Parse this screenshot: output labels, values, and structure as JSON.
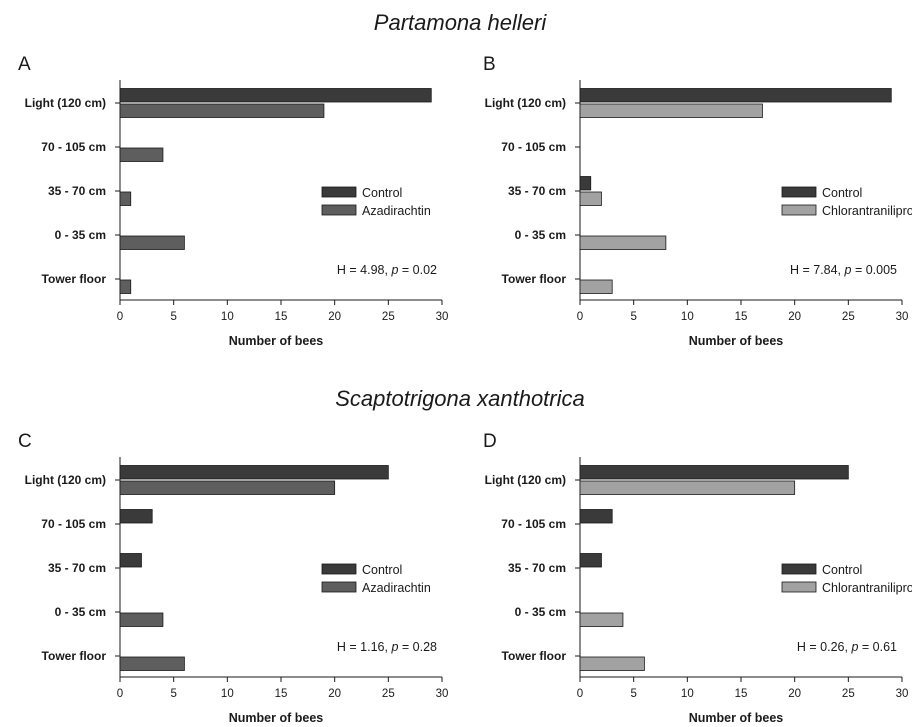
{
  "titles": {
    "top": "Partamona helleri",
    "bottom": "Scaptotrigona xanthotrica"
  },
  "chart_data": [
    {
      "panel": "A",
      "type": "bar",
      "orientation": "horizontal",
      "categories": [
        "Light (120 cm)",
        "70 - 105 cm",
        "35 - 70 cm",
        "0 - 35 cm",
        "Tower floor"
      ],
      "series": [
        {
          "name": "Control",
          "values": [
            29,
            0,
            0,
            0,
            0
          ],
          "color": "#3a3a3a"
        },
        {
          "name": "Azadirachtin",
          "values": [
            19,
            4,
            1,
            6,
            1
          ],
          "color": "#5e5e5e"
        }
      ],
      "xlabel": "Number of bees",
      "xlim": [
        0,
        30
      ],
      "xticks": [
        0,
        5,
        10,
        15,
        20,
        25,
        30
      ],
      "stat": {
        "h": "H = 4.98,",
        "p_symbol": "p",
        "p_value": "= 0.02"
      },
      "legend_position": "right"
    },
    {
      "panel": "B",
      "type": "bar",
      "orientation": "horizontal",
      "categories": [
        "Light (120 cm)",
        "70 - 105 cm",
        "35 - 70 cm",
        "0 - 35 cm",
        "Tower floor"
      ],
      "series": [
        {
          "name": "Control",
          "values": [
            29,
            0,
            1,
            0,
            0
          ],
          "color": "#3a3a3a"
        },
        {
          "name": "Chlorantraniliprole",
          "values": [
            17,
            0,
            2,
            8,
            3
          ],
          "color": "#a2a2a2"
        }
      ],
      "xlabel": "Number of bees",
      "xlim": [
        0,
        30
      ],
      "xticks": [
        0,
        5,
        10,
        15,
        20,
        25,
        30
      ],
      "stat": {
        "h": "H = 7.84,",
        "p_symbol": "p",
        "p_value": "= 0.005"
      },
      "legend_position": "right"
    },
    {
      "panel": "C",
      "type": "bar",
      "orientation": "horizontal",
      "categories": [
        "Light (120 cm)",
        "70 - 105 cm",
        "35 - 70 cm",
        "0 - 35 cm",
        "Tower floor"
      ],
      "series": [
        {
          "name": "Control",
          "values": [
            25,
            3,
            2,
            0,
            0
          ],
          "color": "#3a3a3a"
        },
        {
          "name": "Azadirachtin",
          "values": [
            20,
            0,
            0,
            4,
            6
          ],
          "color": "#5e5e5e"
        }
      ],
      "xlabel": "Number of bees",
      "xlim": [
        0,
        30
      ],
      "xticks": [
        0,
        5,
        10,
        15,
        20,
        25,
        30
      ],
      "stat": {
        "h": "H = 1.16,",
        "p_symbol": "p",
        "p_value": "= 0.28"
      },
      "legend_position": "right"
    },
    {
      "panel": "D",
      "type": "bar",
      "orientation": "horizontal",
      "categories": [
        "Light (120 cm)",
        "70 - 105 cm",
        "35 - 70 cm",
        "0 - 35 cm",
        "Tower floor"
      ],
      "series": [
        {
          "name": "Control",
          "values": [
            25,
            3,
            2,
            0,
            0
          ],
          "color": "#3a3a3a"
        },
        {
          "name": "Chlorantraniliprole",
          "values": [
            20,
            0,
            0,
            4,
            6
          ],
          "color": "#a2a2a2"
        }
      ],
      "xlabel": "Number of bees",
      "xlim": [
        0,
        30
      ],
      "xticks": [
        0,
        5,
        10,
        15,
        20,
        25,
        30
      ],
      "stat": {
        "h": "H = 0.26,",
        "p_symbol": "p",
        "p_value": "= 0.61"
      },
      "legend_position": "right"
    }
  ]
}
